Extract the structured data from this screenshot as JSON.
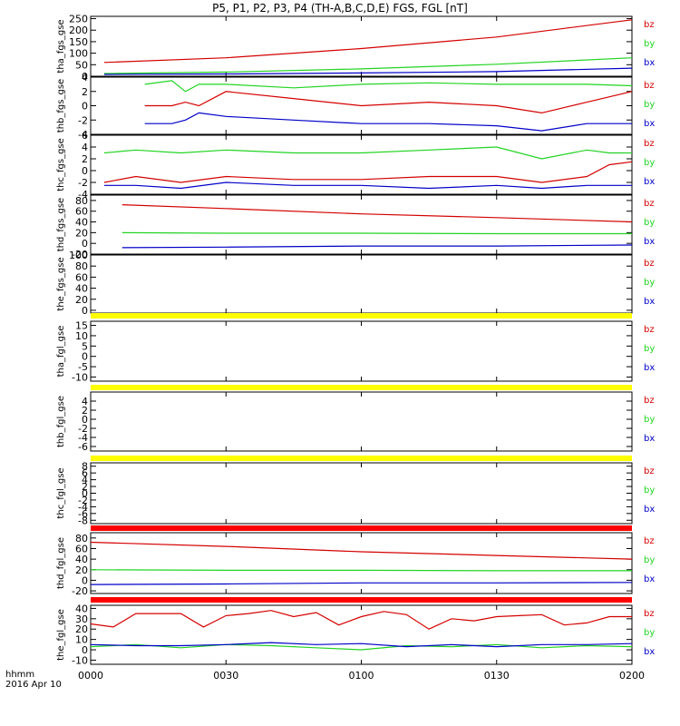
{
  "title": "P5, P1, P2, P3, P4 (TH-A,B,C,D,E) FGS, FGL [nT]",
  "x_footer": [
    "hhmm",
    "2016 Apr 10"
  ],
  "colors": {
    "bz": "#d40000",
    "by": "#22d422",
    "bx": "#0000c8",
    "flag_yellow": "#ffff00",
    "flag_red": "#ff0000"
  },
  "chart_data": [
    {
      "type": "line",
      "ylabel": "tha_fgs_gse",
      "ylim": [
        0,
        260
      ],
      "yticks": [
        0,
        50,
        100,
        150,
        200,
        250
      ],
      "xlim": [
        0,
        120
      ],
      "legend": [
        "bz",
        "by",
        "bx"
      ],
      "series": [
        {
          "name": "bz",
          "x": [
            3,
            30,
            60,
            90,
            120
          ],
          "y": [
            60,
            80,
            120,
            170,
            245
          ]
        },
        {
          "name": "by",
          "x": [
            3,
            30,
            60,
            90,
            120
          ],
          "y": [
            12,
            18,
            32,
            52,
            80
          ]
        },
        {
          "name": "bx",
          "x": [
            3,
            30,
            60,
            90,
            120
          ],
          "y": [
            8,
            10,
            14,
            20,
            35
          ]
        }
      ]
    },
    {
      "type": "line",
      "ylabel": "thb_fgs_gse",
      "ylim": [
        -4,
        4
      ],
      "yticks": [
        -4,
        -2,
        0,
        2,
        4
      ],
      "xlim": [
        0,
        120
      ],
      "legend": [
        "bz",
        "by",
        "bx"
      ],
      "series": [
        {
          "name": "bz",
          "x": [
            12,
            18,
            21,
            24,
            30,
            45,
            60,
            75,
            90,
            100,
            110,
            120
          ],
          "y": [
            0,
            0,
            0.5,
            0,
            2,
            1,
            0,
            0.5,
            0,
            -1,
            0.5,
            2
          ]
        },
        {
          "name": "by",
          "x": [
            12,
            18,
            21,
            24,
            30,
            45,
            60,
            75,
            90,
            100,
            110,
            120
          ],
          "y": [
            3,
            3.5,
            2,
            3,
            3,
            2.5,
            3,
            3.2,
            3,
            3,
            3,
            2.8
          ]
        },
        {
          "name": "bx",
          "x": [
            12,
            18,
            21,
            24,
            30,
            45,
            60,
            75,
            90,
            100,
            110,
            120
          ],
          "y": [
            -2.5,
            -2.5,
            -2,
            -1,
            -1.5,
            -2,
            -2.5,
            -2.5,
            -2.8,
            -3.5,
            -2.5,
            -2.5
          ]
        }
      ]
    },
    {
      "type": "line",
      "ylabel": "thc_fgs_gse",
      "ylim": [
        -4,
        6
      ],
      "yticks": [
        -4,
        -2,
        0,
        2,
        4,
        6
      ],
      "xlim": [
        0,
        120
      ],
      "legend": [
        "bz",
        "by",
        "bx"
      ],
      "series": [
        {
          "name": "bz",
          "x": [
            3,
            10,
            20,
            30,
            45,
            60,
            75,
            90,
            100,
            110,
            115,
            120
          ],
          "y": [
            -2,
            -1,
            -2,
            -1,
            -1.5,
            -1.5,
            -1,
            -1,
            -2,
            -1,
            1,
            1.5
          ]
        },
        {
          "name": "by",
          "x": [
            3,
            10,
            20,
            30,
            45,
            60,
            75,
            90,
            100,
            110,
            115,
            120
          ],
          "y": [
            3,
            3.5,
            3,
            3.5,
            3,
            3,
            3.5,
            4,
            2,
            3.5,
            3,
            3
          ]
        },
        {
          "name": "bx",
          "x": [
            3,
            10,
            20,
            30,
            45,
            60,
            75,
            90,
            100,
            110,
            115,
            120
          ],
          "y": [
            -2.5,
            -2.5,
            -3,
            -2,
            -2.5,
            -2.5,
            -3,
            -2.5,
            -3,
            -2.5,
            -2.5,
            -2.5
          ]
        }
      ]
    },
    {
      "type": "line",
      "ylabel": "thd_fgs_gse",
      "ylim": [
        -20,
        90
      ],
      "yticks": [
        -20,
        0,
        20,
        40,
        60,
        80
      ],
      "xlim": [
        0,
        120
      ],
      "legend": [
        "bz",
        "by",
        "bx"
      ],
      "series": [
        {
          "name": "bz",
          "x": [
            7,
            30,
            60,
            90,
            120
          ],
          "y": [
            72,
            65,
            55,
            48,
            40
          ]
        },
        {
          "name": "by",
          "x": [
            7,
            30,
            60,
            90,
            120
          ],
          "y": [
            20,
            19,
            19,
            18,
            18
          ]
        },
        {
          "name": "bx",
          "x": [
            7,
            30,
            60,
            90,
            120
          ],
          "y": [
            -8,
            -7,
            -5,
            -5,
            -3
          ]
        }
      ]
    },
    {
      "type": "line",
      "ylabel": "the_fgs_gse",
      "ylim": [
        -5,
        100
      ],
      "yticks": [
        0,
        20,
        40,
        60,
        80,
        100
      ],
      "xlim": [
        0,
        120
      ],
      "legend": [
        "bz",
        "by",
        "bx"
      ],
      "series": []
    },
    {
      "type": "line",
      "ylabel": "tha_fgl_gse",
      "ylim": [
        -12,
        17
      ],
      "yticks": [
        -10,
        -5,
        0,
        5,
        10,
        15
      ],
      "xlim": [
        0,
        120
      ],
      "legend": [
        "bz",
        "by",
        "bx"
      ],
      "flag": "yellow",
      "series": []
    },
    {
      "type": "line",
      "ylabel": "thb_fgl_gse",
      "ylim": [
        -7,
        6
      ],
      "yticks": [
        -6,
        -4,
        -2,
        0,
        2,
        4
      ],
      "xlim": [
        0,
        120
      ],
      "legend": [
        "bz",
        "by",
        "bx"
      ],
      "flag": "yellow",
      "series": []
    },
    {
      "type": "line",
      "ylabel": "thc_fgl_gse",
      "ylim": [
        -9,
        9
      ],
      "yticks": [
        -8,
        -6,
        -4,
        -2,
        0,
        2,
        4,
        6,
        8
      ],
      "xlim": [
        0,
        120
      ],
      "legend": [
        "bz",
        "by",
        "bx"
      ],
      "flag": "yellow",
      "series": []
    },
    {
      "type": "line",
      "ylabel": "thd_fgl_gse",
      "ylim": [
        -25,
        90
      ],
      "yticks": [
        -20,
        0,
        20,
        40,
        60,
        80
      ],
      "xlim": [
        0,
        120
      ],
      "legend": [
        "bz",
        "by",
        "bx"
      ],
      "flag": "red",
      "series": [
        {
          "name": "bz",
          "x": [
            0,
            30,
            60,
            90,
            120
          ],
          "y": [
            72,
            64,
            54,
            47,
            40
          ]
        },
        {
          "name": "by",
          "x": [
            0,
            30,
            60,
            90,
            120
          ],
          "y": [
            20,
            19,
            19,
            18,
            18
          ]
        },
        {
          "name": "bx",
          "x": [
            0,
            30,
            60,
            90,
            120
          ],
          "y": [
            -8,
            -7,
            -5,
            -5,
            -4
          ]
        }
      ]
    },
    {
      "type": "line",
      "ylabel": "the_fgl_gse",
      "ylim": [
        -14,
        43
      ],
      "yticks": [
        -10,
        0,
        10,
        20,
        30,
        40
      ],
      "xlim": [
        0,
        120
      ],
      "legend": [
        "bz",
        "by",
        "bx"
      ],
      "flag": "red",
      "series": [
        {
          "name": "bz",
          "x": [
            0,
            5,
            10,
            20,
            25,
            30,
            35,
            40,
            45,
            50,
            55,
            60,
            65,
            70,
            75,
            80,
            85,
            90,
            95,
            100,
            105,
            110,
            115,
            120
          ],
          "y": [
            25,
            22,
            35,
            35,
            22,
            33,
            35,
            38,
            32,
            36,
            24,
            32,
            37,
            34,
            20,
            30,
            28,
            32,
            33,
            34,
            24,
            26,
            32,
            32
          ]
        },
        {
          "name": "by",
          "x": [
            0,
            10,
            20,
            30,
            40,
            50,
            60,
            70,
            80,
            90,
            100,
            110,
            120
          ],
          "y": [
            3,
            5,
            2,
            5,
            4,
            2,
            0,
            4,
            3,
            5,
            2,
            4,
            3
          ]
        },
        {
          "name": "bx",
          "x": [
            0,
            10,
            20,
            30,
            40,
            50,
            60,
            70,
            80,
            90,
            100,
            110,
            120
          ],
          "y": [
            5,
            4,
            4,
            5,
            7,
            5,
            6,
            3,
            5,
            3,
            5,
            5,
            6
          ]
        }
      ]
    }
  ],
  "x_axis": {
    "ticks": [
      {
        "v": 0,
        "label": "0000"
      },
      {
        "v": 30,
        "label": "0030"
      },
      {
        "v": 60,
        "label": "0100"
      },
      {
        "v": 90,
        "label": "0130"
      },
      {
        "v": 120,
        "label": "0200"
      }
    ]
  }
}
